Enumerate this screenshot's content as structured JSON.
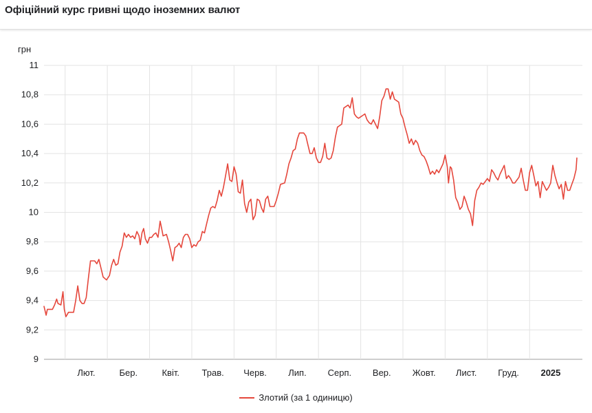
{
  "title": "Офіційний курс гривні щодо іноземних валют",
  "chart_data": {
    "type": "line",
    "ylabel": "грн",
    "ylim": [
      9,
      11
    ],
    "yticks": [
      9,
      9.2,
      9.4,
      9.6,
      9.8,
      10,
      10.2,
      10.4,
      10.6,
      10.8,
      11
    ],
    "ytick_labels": [
      "9",
      "9,2",
      "9,4",
      "9,6",
      "9,8",
      "10",
      "10,2",
      "10,4",
      "10,6",
      "10,8",
      "11"
    ],
    "xlim": [
      0,
      12.75
    ],
    "x_ticks": [
      {
        "label": "Лют.",
        "x": 1.0
      },
      {
        "label": "Бер.",
        "x": 2.0
      },
      {
        "label": "Квіт.",
        "x": 3.0
      },
      {
        "label": "Трав.",
        "x": 4.0
      },
      {
        "label": "Черв.",
        "x": 5.0
      },
      {
        "label": "Лип.",
        "x": 6.0
      },
      {
        "label": "Серп.",
        "x": 7.0
      },
      {
        "label": "Вер.",
        "x": 8.0
      },
      {
        "label": "Жовт.",
        "x": 9.0
      },
      {
        "label": "Лист.",
        "x": 10.0
      },
      {
        "label": "Груд.",
        "x": 11.0
      },
      {
        "label": "2025",
        "x": 12.0,
        "bold": true
      }
    ],
    "grid": true,
    "legend_position": "bottom",
    "series": [
      {
        "name": "Злотий (за 1 одиницю)",
        "color": "#e5463b",
        "points": [
          [
            0.0,
            9.36
          ],
          [
            0.05,
            9.3
          ],
          [
            0.08,
            9.34
          ],
          [
            0.2,
            9.34
          ],
          [
            0.25,
            9.37
          ],
          [
            0.3,
            9.41
          ],
          [
            0.33,
            9.38
          ],
          [
            0.4,
            9.37
          ],
          [
            0.45,
            9.46
          ],
          [
            0.48,
            9.34
          ],
          [
            0.52,
            9.29
          ],
          [
            0.58,
            9.32
          ],
          [
            0.7,
            9.32
          ],
          [
            0.75,
            9.4
          ],
          [
            0.8,
            9.5
          ],
          [
            0.85,
            9.4
          ],
          [
            0.9,
            9.38
          ],
          [
            0.95,
            9.38
          ],
          [
            1.0,
            9.42
          ],
          [
            1.05,
            9.55
          ],
          [
            1.1,
            9.67
          ],
          [
            1.2,
            9.67
          ],
          [
            1.25,
            9.65
          ],
          [
            1.3,
            9.68
          ],
          [
            1.35,
            9.62
          ],
          [
            1.4,
            9.56
          ],
          [
            1.48,
            9.54
          ],
          [
            1.55,
            9.57
          ],
          [
            1.6,
            9.64
          ],
          [
            1.65,
            9.68
          ],
          [
            1.7,
            9.64
          ],
          [
            1.75,
            9.65
          ],
          [
            1.8,
            9.73
          ],
          [
            1.85,
            9.77
          ],
          [
            1.9,
            9.86
          ],
          [
            1.95,
            9.83
          ],
          [
            2.0,
            9.85
          ],
          [
            2.05,
            9.83
          ],
          [
            2.1,
            9.84
          ],
          [
            2.15,
            9.82
          ],
          [
            2.2,
            9.87
          ],
          [
            2.25,
            9.84
          ],
          [
            2.28,
            9.78
          ],
          [
            2.32,
            9.86
          ],
          [
            2.36,
            9.89
          ],
          [
            2.4,
            9.82
          ],
          [
            2.45,
            9.79
          ],
          [
            2.5,
            9.83
          ],
          [
            2.55,
            9.83
          ],
          [
            2.6,
            9.85
          ],
          [
            2.65,
            9.86
          ],
          [
            2.7,
            9.83
          ],
          [
            2.75,
            9.94
          ],
          [
            2.78,
            9.9
          ],
          [
            2.82,
            9.84
          ],
          [
            2.9,
            9.85
          ],
          [
            2.95,
            9.8
          ],
          [
            3.0,
            9.74
          ],
          [
            3.05,
            9.67
          ],
          [
            3.1,
            9.76
          ],
          [
            3.15,
            9.77
          ],
          [
            3.2,
            9.79
          ],
          [
            3.25,
            9.76
          ],
          [
            3.3,
            9.83
          ],
          [
            3.35,
            9.85
          ],
          [
            3.4,
            9.85
          ],
          [
            3.45,
            9.82
          ],
          [
            3.5,
            9.76
          ],
          [
            3.55,
            9.78
          ],
          [
            3.6,
            9.77
          ],
          [
            3.65,
            9.8
          ],
          [
            3.7,
            9.81
          ],
          [
            3.75,
            9.87
          ],
          [
            3.8,
            9.86
          ],
          [
            3.85,
            9.92
          ],
          [
            3.9,
            9.98
          ],
          [
            3.95,
            10.03
          ],
          [
            4.0,
            10.04
          ],
          [
            4.05,
            10.03
          ],
          [
            4.1,
            10.08
          ],
          [
            4.15,
            10.15
          ],
          [
            4.2,
            10.11
          ],
          [
            4.25,
            10.17
          ],
          [
            4.3,
            10.25
          ],
          [
            4.35,
            10.33
          ],
          [
            4.4,
            10.22
          ],
          [
            4.45,
            10.21
          ],
          [
            4.5,
            10.31
          ],
          [
            4.55,
            10.26
          ],
          [
            4.6,
            10.14
          ],
          [
            4.65,
            10.13
          ],
          [
            4.7,
            10.22
          ],
          [
            4.75,
            10.06
          ],
          [
            4.8,
            10.0
          ],
          [
            4.85,
            10.07
          ],
          [
            4.9,
            10.09
          ],
          [
            4.95,
            9.95
          ],
          [
            5.0,
            9.98
          ],
          [
            5.05,
            10.09
          ],
          [
            5.1,
            10.08
          ],
          [
            5.15,
            10.03
          ],
          [
            5.2,
            10.0
          ],
          [
            5.25,
            10.09
          ],
          [
            5.3,
            10.11
          ],
          [
            5.35,
            10.04
          ],
          [
            5.45,
            10.04
          ],
          [
            5.5,
            10.08
          ],
          [
            5.55,
            10.13
          ],
          [
            5.6,
            10.19
          ],
          [
            5.7,
            10.2
          ],
          [
            5.75,
            10.26
          ],
          [
            5.8,
            10.33
          ],
          [
            5.85,
            10.37
          ],
          [
            5.9,
            10.42
          ],
          [
            5.95,
            10.43
          ],
          [
            6.0,
            10.5
          ],
          [
            6.05,
            10.54
          ],
          [
            6.15,
            10.54
          ],
          [
            6.2,
            10.52
          ],
          [
            6.25,
            10.46
          ],
          [
            6.3,
            10.4
          ],
          [
            6.35,
            10.4
          ],
          [
            6.4,
            10.44
          ],
          [
            6.45,
            10.37
          ],
          [
            6.5,
            10.34
          ],
          [
            6.55,
            10.34
          ],
          [
            6.6,
            10.38
          ],
          [
            6.65,
            10.47
          ],
          [
            6.7,
            10.37
          ],
          [
            6.75,
            10.36
          ],
          [
            6.8,
            10.37
          ],
          [
            6.85,
            10.42
          ],
          [
            6.9,
            10.51
          ],
          [
            6.95,
            10.58
          ],
          [
            7.0,
            10.59
          ],
          [
            7.05,
            10.6
          ],
          [
            7.1,
            10.71
          ],
          [
            7.15,
            10.72
          ],
          [
            7.2,
            10.73
          ],
          [
            7.25,
            10.71
          ],
          [
            7.3,
            10.78
          ],
          [
            7.35,
            10.67
          ],
          [
            7.4,
            10.65
          ],
          [
            7.45,
            10.64
          ],
          [
            7.5,
            10.65
          ],
          [
            7.55,
            10.66
          ],
          [
            7.6,
            10.67
          ],
          [
            7.65,
            10.63
          ],
          [
            7.7,
            10.61
          ],
          [
            7.75,
            10.6
          ],
          [
            7.8,
            10.63
          ],
          [
            7.85,
            10.6
          ],
          [
            7.9,
            10.57
          ],
          [
            7.95,
            10.65
          ],
          [
            8.0,
            10.76
          ],
          [
            8.05,
            10.79
          ],
          [
            8.1,
            10.84
          ],
          [
            8.15,
            10.84
          ],
          [
            8.2,
            10.77
          ],
          [
            8.25,
            10.82
          ],
          [
            8.3,
            10.77
          ],
          [
            8.35,
            10.76
          ],
          [
            8.4,
            10.75
          ],
          [
            8.45,
            10.67
          ],
          [
            8.5,
            10.64
          ],
          [
            8.55,
            10.58
          ],
          [
            8.6,
            10.53
          ],
          [
            8.65,
            10.47
          ],
          [
            8.7,
            10.5
          ],
          [
            8.75,
            10.46
          ],
          [
            8.8,
            10.49
          ],
          [
            8.85,
            10.47
          ],
          [
            8.9,
            10.42
          ],
          [
            8.95,
            10.39
          ],
          [
            9.0,
            10.38
          ],
          [
            9.05,
            10.35
          ],
          [
            9.1,
            10.31
          ],
          [
            9.15,
            10.26
          ],
          [
            9.2,
            10.28
          ],
          [
            9.25,
            10.26
          ],
          [
            9.3,
            10.29
          ],
          [
            9.35,
            10.27
          ],
          [
            9.4,
            10.3
          ],
          [
            9.45,
            10.33
          ],
          [
            9.5,
            10.39
          ],
          [
            9.55,
            10.31
          ],
          [
            9.58,
            10.2
          ],
          [
            9.62,
            10.31
          ],
          [
            9.65,
            10.3
          ],
          [
            9.7,
            10.22
          ],
          [
            9.75,
            10.1
          ],
          [
            9.8,
            10.07
          ],
          [
            9.85,
            10.02
          ],
          [
            9.9,
            10.04
          ],
          [
            9.95,
            10.11
          ],
          [
            10.0,
            10.07
          ],
          [
            10.05,
            10.02
          ],
          [
            10.1,
            9.99
          ],
          [
            10.15,
            9.91
          ],
          [
            10.2,
            10.08
          ],
          [
            10.25,
            10.15
          ],
          [
            10.3,
            10.17
          ],
          [
            10.35,
            10.2
          ],
          [
            10.4,
            10.19
          ],
          [
            10.45,
            10.21
          ],
          [
            10.5,
            10.23
          ],
          [
            10.55,
            10.21
          ],
          [
            10.6,
            10.29
          ],
          [
            10.65,
            10.27
          ],
          [
            10.7,
            10.24
          ],
          [
            10.75,
            10.22
          ],
          [
            10.8,
            10.26
          ],
          [
            10.85,
            10.29
          ],
          [
            10.9,
            10.32
          ],
          [
            10.95,
            10.23
          ],
          [
            11.0,
            10.25
          ],
          [
            11.05,
            10.23
          ],
          [
            11.1,
            10.2
          ],
          [
            11.15,
            10.2
          ],
          [
            11.2,
            10.22
          ],
          [
            11.25,
            10.24
          ],
          [
            11.3,
            10.3
          ],
          [
            11.35,
            10.22
          ],
          [
            11.4,
            10.15
          ],
          [
            11.45,
            10.15
          ],
          [
            11.5,
            10.27
          ],
          [
            11.55,
            10.32
          ],
          [
            11.6,
            10.25
          ],
          [
            11.65,
            10.18
          ],
          [
            11.7,
            10.21
          ],
          [
            11.75,
            10.1
          ],
          [
            11.8,
            10.21
          ],
          [
            11.85,
            10.18
          ],
          [
            11.9,
            10.15
          ],
          [
            11.95,
            10.17
          ],
          [
            12.0,
            10.2
          ],
          [
            12.05,
            10.32
          ],
          [
            12.1,
            10.25
          ],
          [
            12.15,
            10.2
          ],
          [
            12.2,
            10.16
          ],
          [
            12.25,
            10.19
          ],
          [
            12.3,
            10.09
          ],
          [
            12.35,
            10.21
          ],
          [
            12.4,
            10.15
          ],
          [
            12.45,
            10.15
          ],
          [
            12.5,
            10.19
          ],
          [
            12.55,
            10.23
          ],
          [
            12.6,
            10.29
          ],
          [
            12.62,
            10.37
          ]
        ]
      }
    ]
  }
}
